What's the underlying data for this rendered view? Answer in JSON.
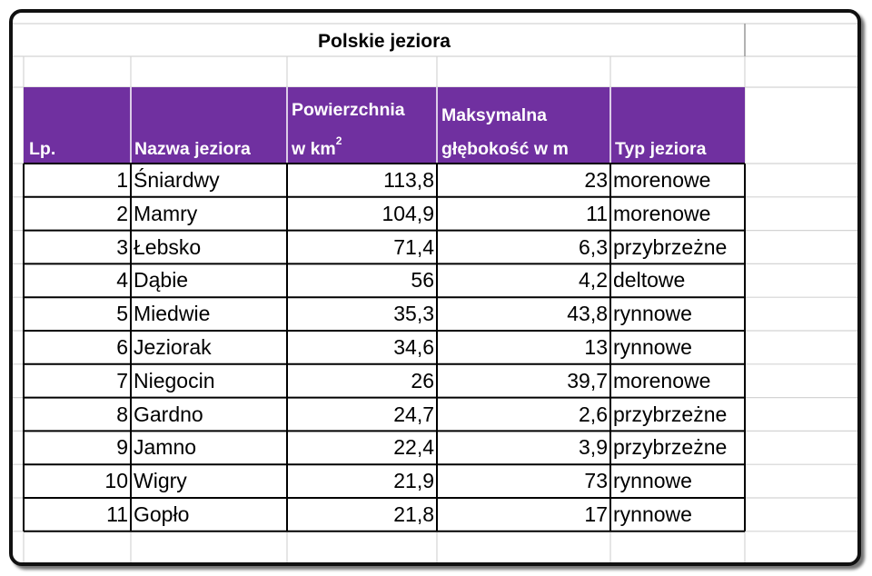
{
  "title": "Polskie jeziora",
  "colors": {
    "header_bg": "#7030A0",
    "header_text": "#FFFFFF",
    "grid": "#D4D4D4",
    "border": "#000000"
  },
  "headers": {
    "lp": "Lp.",
    "name": "Nazwa jeziora",
    "area_line1": "Powierzchnia",
    "area_line2": "w km",
    "area_sup": "2",
    "depth_line1": "Maksymalna",
    "depth_line2": "głębokość w m",
    "type": "Typ jeziora"
  },
  "rows": [
    {
      "lp": "1",
      "name": "Śniardwy",
      "area": "113,8",
      "depth": "23",
      "type": "morenowe"
    },
    {
      "lp": "2",
      "name": "Mamry",
      "area": "104,9",
      "depth": "11",
      "type": "morenowe"
    },
    {
      "lp": "3",
      "name": "Łebsko",
      "area": "71,4",
      "depth": "6,3",
      "type": "przybrzeżne"
    },
    {
      "lp": "4",
      "name": "Dąbie",
      "area": "56",
      "depth": "4,2",
      "type": "deltowe"
    },
    {
      "lp": "5",
      "name": "Miedwie",
      "area": "35,3",
      "depth": "43,8",
      "type": "rynnowe"
    },
    {
      "lp": "6",
      "name": "Jeziorak",
      "area": "34,6",
      "depth": "13",
      "type": "rynnowe"
    },
    {
      "lp": "7",
      "name": "Niegocin",
      "area": "26",
      "depth": "39,7",
      "type": "morenowe"
    },
    {
      "lp": "8",
      "name": "Gardno",
      "area": "24,7",
      "depth": "2,6",
      "type": "przybrzeżne"
    },
    {
      "lp": "9",
      "name": "Jamno",
      "area": "22,4",
      "depth": "3,9",
      "type": "przybrzeżne"
    },
    {
      "lp": "10",
      "name": "Wigry",
      "area": "21,9",
      "depth": "73",
      "type": "rynnowe"
    },
    {
      "lp": "11",
      "name": "Gopło",
      "area": "21,8",
      "depth": "17",
      "type": "rynnowe"
    }
  ]
}
